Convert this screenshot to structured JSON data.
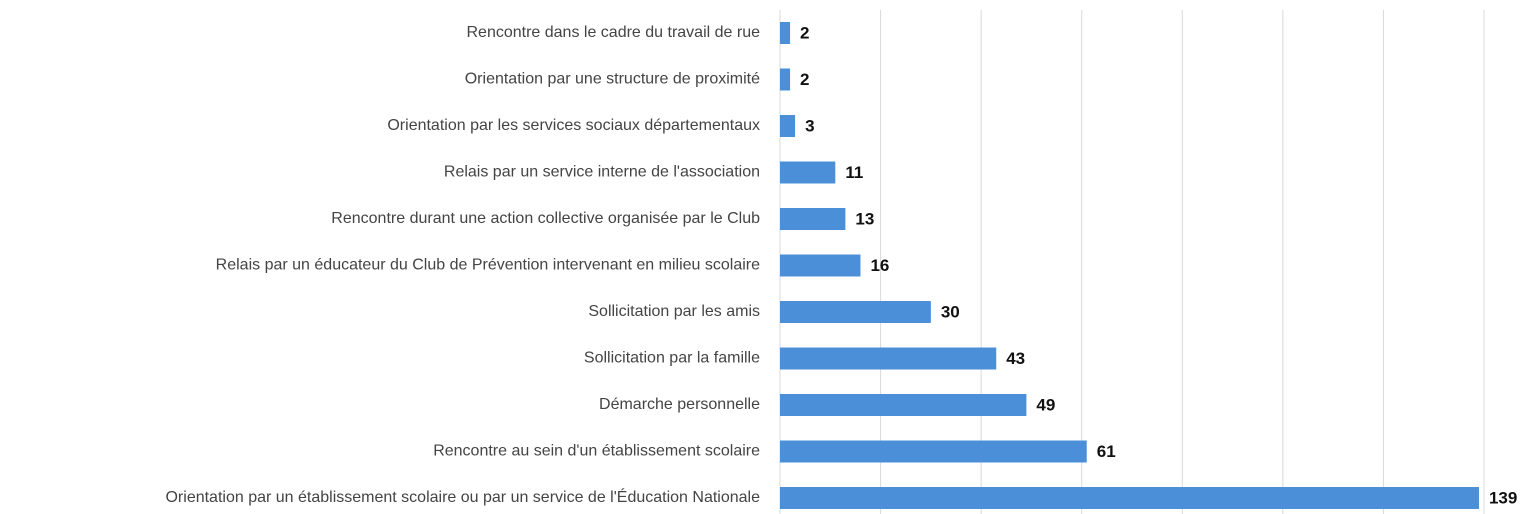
{
  "chart_data": {
    "type": "hbar",
    "categories": [
      "Rencontre dans le cadre du travail de rue",
      "Orientation par une structure de proximité",
      "Orientation par les services sociaux départementaux",
      "Relais par un service interne de l'association",
      "Rencontre durant une action collective organisée par le Club",
      "Relais par un éducateur du Club de Prévention intervenant en milieu scolaire",
      "Sollicitation par les amis",
      "Sollicitation par la famille",
      "Démarche personnelle",
      "Rencontre au sein d'un établissement scolaire",
      "Orientation par un établissement scolaire ou par un service de l'Éducation Nationale"
    ],
    "values": [
      2,
      2,
      3,
      11,
      13,
      16,
      30,
      43,
      49,
      61,
      139
    ],
    "color": "#4a8fd8",
    "xlim": [
      0,
      140
    ],
    "xticks": [
      0,
      20,
      40,
      60,
      80,
      100,
      120,
      140
    ],
    "grid": true
  }
}
